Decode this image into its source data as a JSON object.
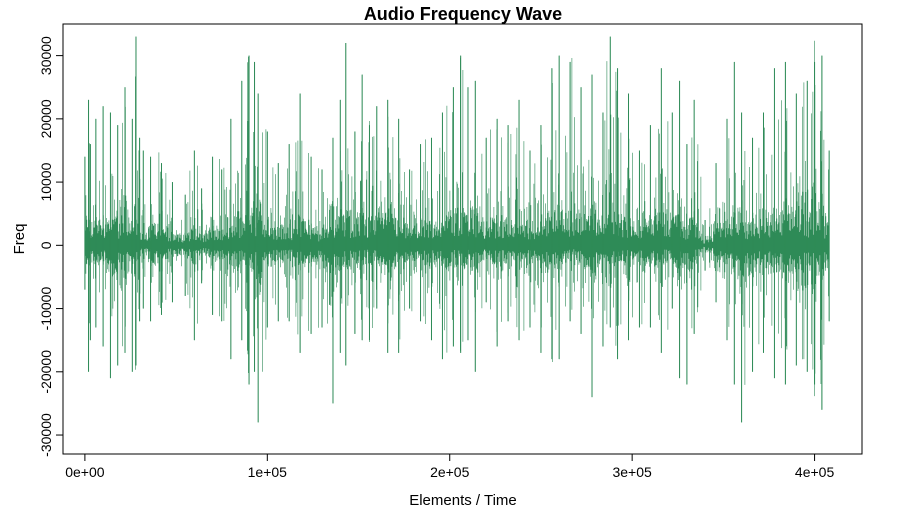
{
  "chart_data": {
    "type": "line",
    "title": "Audio Frequency Wave",
    "xlabel": "Elements / Time",
    "ylabel": "Freq",
    "xlim": [
      -12000,
      426000
    ],
    "ylim": [
      -33000,
      35000
    ],
    "x_ticks": [
      {
        "value": 0,
        "label": "0e+00"
      },
      {
        "value": 100000,
        "label": "1e+05"
      },
      {
        "value": 200000,
        "label": "2e+05"
      },
      {
        "value": 300000,
        "label": "3e+05"
      },
      {
        "value": 400000,
        "label": "4e+05"
      }
    ],
    "y_ticks": [
      {
        "value": -30000,
        "label": "-30000"
      },
      {
        "value": -20000,
        "label": "-20000"
      },
      {
        "value": -10000,
        "label": "-10000"
      },
      {
        "value": 0,
        "label": "0"
      },
      {
        "value": 10000,
        "label": "10000"
      },
      {
        "value": 20000,
        "label": "20000"
      },
      {
        "value": 30000,
        "label": "30000"
      }
    ],
    "grid": false,
    "legend": "none",
    "series": [
      {
        "color": "#2e8b57",
        "x": [
          0,
          2000,
          3000,
          6000,
          10000,
          14000,
          18000,
          22000,
          26000,
          28000,
          30000,
          32000,
          36000,
          42000,
          48000,
          55000,
          60000,
          64000,
          70000,
          75000,
          80000,
          86000,
          90000,
          93000,
          95000,
          100000,
          106000,
          112000,
          118000,
          124000,
          130000,
          136000,
          140000,
          143000,
          148000,
          152000,
          156000,
          160000,
          166000,
          172000,
          178000,
          184000,
          190000,
          196000,
          202000,
          206000,
          210000,
          214000,
          220000,
          226000,
          232000,
          238000,
          244000,
          250000,
          256000,
          260000,
          266000,
          272000,
          278000,
          284000,
          288000,
          292000,
          298000,
          304000,
          310000,
          316000,
          322000,
          326000,
          330000,
          334000,
          340000,
          346000,
          352000,
          356000,
          360000,
          366000,
          372000,
          378000,
          384000,
          390000,
          396000,
          400000,
          404000,
          408000
        ],
        "ymax": [
          14000,
          23000,
          16000,
          20000,
          22000,
          21000,
          19000,
          25000,
          20000,
          33000,
          17000,
          15000,
          14000,
          13000,
          10000,
          8000,
          15000,
          9000,
          14000,
          12000,
          20000,
          26000,
          30000,
          29000,
          24000,
          18000,
          13000,
          16000,
          24000,
          14000,
          12000,
          17000,
          23000,
          32000,
          18000,
          27000,
          19000,
          22000,
          23000,
          20000,
          12000,
          16000,
          17000,
          21000,
          25000,
          30000,
          25000,
          26000,
          17000,
          20000,
          19000,
          23000,
          15000,
          19000,
          28000,
          30000,
          29000,
          25000,
          27000,
          21000,
          33000,
          28000,
          24000,
          15000,
          19000,
          28000,
          21000,
          26000,
          16000,
          23000,
          4000,
          13000,
          20000,
          29000,
          21000,
          17000,
          21000,
          28000,
          29000,
          24000,
          26000,
          29000,
          30000,
          15000
        ],
        "ymin": [
          -7000,
          -20000,
          -15000,
          -13000,
          -16000,
          -21000,
          -19000,
          -17000,
          -20000,
          -19000,
          -12000,
          -10000,
          -12000,
          -11000,
          -9000,
          -8000,
          -15000,
          -6000,
          -11000,
          -12000,
          -18000,
          -15000,
          -22000,
          -20000,
          -28000,
          -13000,
          -12000,
          -12000,
          -17000,
          -14000,
          -13000,
          -25000,
          -17000,
          -19000,
          -14000,
          -15000,
          -15000,
          -10000,
          -17000,
          -17000,
          -10000,
          -12000,
          -15000,
          -18000,
          -16000,
          -17000,
          -15000,
          -20000,
          -9000,
          -16000,
          -12000,
          -15000,
          -13000,
          -17000,
          -18000,
          -18000,
          -12000,
          -14000,
          -24000,
          -16000,
          -13000,
          -18000,
          -15000,
          -13000,
          -13000,
          -17000,
          -10000,
          -21000,
          -22000,
          -14000,
          -4000,
          -9000,
          -15000,
          -22000,
          -28000,
          -20000,
          -17000,
          -21000,
          -22000,
          -19000,
          -20000,
          -22000,
          -26000,
          -12000
        ]
      }
    ]
  }
}
